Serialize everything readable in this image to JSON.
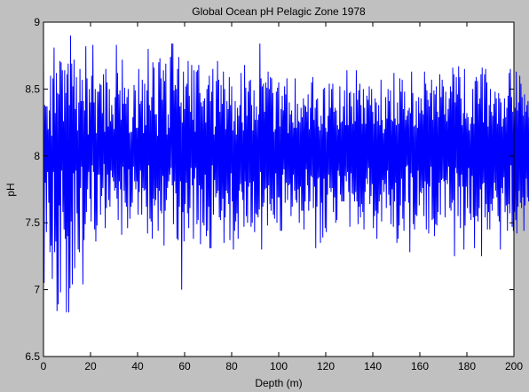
{
  "chart_data": {
    "type": "line",
    "title": "Global Ocean pH Pelagic Zone 1978",
    "xlabel": "Depth (m)",
    "ylabel": "pH",
    "xlim": [
      0,
      200
    ],
    "ylim": [
      6.5,
      9
    ],
    "xticks": [
      0,
      20,
      40,
      60,
      80,
      100,
      120,
      140,
      160,
      180,
      200
    ],
    "yticks": [
      6.5,
      7,
      7.5,
      8,
      8.5,
      9
    ],
    "xtick_labels": [
      "0",
      "20",
      "40",
      "60",
      "80",
      "100",
      "120",
      "140",
      "160",
      "180",
      "200"
    ],
    "ytick_labels": [
      "6.5",
      "7",
      "7.5",
      "8",
      "8.5",
      "9"
    ],
    "grid": false,
    "series": [
      {
        "color": "#0000ff",
        "x_start": 0,
        "x_step": 0.25,
        "y": [
          8.78,
          7.05,
          8.38,
          7.8,
          8.37,
          7.43,
          8.37,
          7.88,
          8.2,
          7.65,
          8.34,
          7.28,
          8.6,
          7.33,
          8.15,
          7.08,
          8.58,
          7.88,
          8.81,
          7.28,
          8.32,
          7.36,
          8.62,
          6.84,
          8.47,
          6.89,
          8.46,
          7.63,
          8.71,
          6.98,
          8.7,
          7.89,
          8.64,
          7.58,
          8.26,
          7.45,
          8.64,
          7.38,
          8.47,
          6.83,
          8.61,
          7.4,
          8.69,
          6.83,
          8.38,
          7.01,
          8.9,
          7.51,
          8.69,
          7.04,
          8.52,
          7.87,
          8.72,
          7.16,
          8.35,
          7.89,
          8.59,
          7.57,
          8.19,
          7.3,
          8.4,
          7.28,
          8.65,
          7.76,
          8.41,
          7.92,
          8.57,
          7.04,
          8.41,
          7.37,
          8.34,
          7.49,
          8.82,
          7.58,
          8.58,
          7.75,
          8.16,
          7.88,
          8.5,
          7.68,
          8.4,
          7.51,
          8.6,
          7.93,
          8.83,
          7.88,
          8.4,
          7.45,
          8.5,
          7.36,
          8.17,
          7.48,
          8.48,
          7.86,
          8.48,
          7.86,
          8.54,
          7.56,
          8.53,
          7.7,
          8.32,
          7.76,
          8.61,
          7.94,
          8.18,
          7.46,
          8.65,
          7.61,
          8.55,
          7.86,
          8.22,
          7.67,
          8.5,
          7.62,
          8.26,
          7.89,
          8.38,
          7.84,
          8.31,
          7.81,
          8.2,
          7.74,
          8.44,
          7.76,
          8.83,
          7.68,
          8.62,
          7.52,
          8.46,
          7.81,
          8.49,
          7.75,
          8.27,
          7.41,
          8.72,
          7.92,
          8.39,
          7.74,
          8.51,
          7.65,
          8.39,
          7.62,
          8.44,
          7.46,
          8.5,
          7.9,
          8.17,
          7.53,
          8.18,
          7.62,
          8.18,
          7.65,
          8.29,
          7.92,
          8.53,
          7.81,
          8.49,
          7.75,
          8.21,
          7.81,
          8.21,
          7.56,
          8.65,
          7.73,
          8.39,
          7.89,
          8.41,
          7.56,
          8.57,
          7.76,
          8.17,
          7.74,
          8.54,
          7.75,
          8.23,
          7.62,
          8.49,
          7.42,
          8.8,
          7.93,
          8.38,
          7.53,
          8.34,
          7.51,
          8.44,
          7.38,
          8.7,
          7.68,
          8.66,
          7.63,
          8.31,
          7.67,
          8.31,
          7.76,
          8.15,
          7.44,
          8.7,
          7.74,
          8.73,
          7.59,
          8.58,
          7.57,
          8.42,
          7.85,
          8.64,
          7.33,
          8.56,
          7.59,
          8.69,
          7.67,
          8.16,
          7.76,
          8.31,
          7.81,
          8.21,
          7.86,
          8.74,
          7.91,
          8.84,
          7.78,
          8.84,
          7.49,
          8.49,
          7.81,
          8.53,
          7.72,
          8.5,
          7.38,
          8.65,
          7.37,
          8.74,
          7.62,
          8.37,
          7.81,
          8.4,
          7.0,
          8.25,
          7.58,
          8.63,
          7.36,
          8.35,
          7.64,
          8.52,
          7.8,
          8.54,
          7.57,
          8.71,
          7.46,
          8.45,
          7.61,
          8.33,
          7.91,
          8.68,
          7.78,
          8.27,
          7.38,
          8.64,
          7.83,
          8.18,
          7.91,
          8.63,
          7.49,
          8.64,
          7.52,
          8.68,
          7.78,
          8.47,
          7.34,
          8.4,
          7.75,
          8.37,
          7.5,
          8.41,
          7.48,
          8.43,
          7.86,
          8.25,
          7.4,
          8.5,
          7.44,
          8.53,
          7.62,
          8.6,
          7.31,
          8.41,
          7.31,
          8.48,
          7.93,
          8.65,
          7.56,
          8.16,
          7.82,
          8.22,
          7.69,
          8.56,
          7.72,
          8.71,
          7.74,
          8.57,
          7.54,
          8.33,
          7.52,
          8.53,
          7.59,
          8.39,
          7.68,
          8.63,
          7.35,
          8.5,
          7.54,
          8.2,
          7.74,
          8.41,
          7.72,
          8.35,
          7.64,
          8.59,
          7.37,
          8.38,
          7.87,
          8.52,
          7.66,
          8.19,
          7.3,
          8.26,
          7.44,
          8.41,
          7.51,
          8.16,
          7.57,
          8.36,
          7.38,
          8.3,
          7.74,
          8.38,
          7.79,
          8.62,
          7.73,
          8.25,
          7.67,
          8.19,
          7.47,
          8.68,
          7.81,
          8.51,
          7.55,
          8.3,
          7.5,
          8.48,
          7.77,
          8.56,
          7.8,
          8.57,
          7.47,
          8.38,
          7.5,
          8.19,
          7.81,
          8.49,
          7.43,
          8.27,
          7.57,
          8.37,
          7.56,
          8.27,
          7.54,
          8.31,
          7.6,
          8.84,
          7.88,
          8.58,
          7.3,
          8.52,
          7.62,
          8.54,
          7.65,
          8.33,
          7.75,
          8.55,
          7.76,
          8.51,
          7.48,
          8.63,
          7.78,
          8.5,
          7.64,
          8.59,
          7.59,
          8.58,
          7.68,
          8.47,
          7.56,
          8.18,
          7.53,
          8.2,
          7.87,
          8.48,
          7.5,
          8.51,
          7.69,
          8.55,
          7.69,
          8.22,
          7.44,
          8.35,
          7.44,
          8.45,
          7.86,
          8.34,
          7.9,
          8.52,
          7.65,
          8.46,
          7.8,
          8.58,
          7.67,
          8.17,
          7.78,
          8.4,
          7.79,
          8.31,
          7.55,
          8.34,
          7.62,
          8.25,
          7.86,
          8.21,
          7.74,
          8.58,
          7.67,
          8.21,
          7.65,
          8.39,
          7.75,
          8.26,
          7.5,
          8.25,
          7.77,
          8.36,
          7.59,
          8.29,
          7.59,
          8.43,
          7.45,
          8.38,
          7.66,
          8.37,
          7.9,
          8.33,
          7.78,
          8.46,
          7.59,
          8.2,
          7.66,
          8.36,
          7.85,
          8.55,
          7.84,
          8.59,
          7.61,
          8.27,
          7.77,
          8.36,
          7.31,
          8.42,
          7.62,
          8.43,
          7.83,
          8.22,
          7.84,
          8.19,
          7.35,
          8.3,
          7.65,
          8.24,
          7.39,
          8.5,
          7.83,
          8.51,
          7.46,
          8.21,
          7.43,
          8.18,
          7.71,
          8.3,
          7.86,
          8.54,
          7.76,
          8.36,
          7.73,
          8.5,
          7.76,
          8.54,
          7.58,
          8.33,
          7.69,
          8.36,
          7.5,
          8.34,
          7.52,
          8.23,
          7.89,
          8.2,
          7.85,
          8.52,
          7.71,
          8.25,
          7.66,
          8.26,
          7.66,
          8.37,
          7.66,
          8.49,
          7.85,
          8.23,
          7.81,
          8.64,
          7.88,
          8.23,
          7.73,
          8.47,
          7.47,
          8.48,
          7.87,
          8.37,
          7.72,
          8.24,
          7.71,
          8.47,
          7.66,
          8.26,
          7.73,
          8.64,
          7.66,
          8.42,
          7.49,
          8.49,
          7.62,
          8.54,
          7.54,
          8.38,
          7.64,
          8.24,
          7.58,
          8.5,
          7.45,
          8.36,
          7.73,
          8.24,
          7.83,
          8.45,
          7.79,
          8.42,
          7.91,
          8.52,
          7.64,
          8.38,
          7.7,
          8.5,
          7.79,
          8.33,
          7.46,
          8.24,
          7.55,
          8.43,
          7.59,
          8.4,
          7.38,
          8.26,
          7.57,
          8.38,
          7.66,
          8.23,
          7.71,
          8.57,
          7.51,
          8.27,
          7.82,
          8.17,
          7.73,
          8.2,
          7.79,
          8.44,
          7.61,
          8.28,
          7.89,
          8.5,
          7.71,
          8.41,
          7.63,
          8.49,
          7.49,
          8.27,
          7.75,
          8.26,
          7.47,
          8.62,
          7.66,
          8.28,
          7.8,
          8.23,
          7.35,
          8.4,
          7.38,
          8.24,
          7.48,
          8.58,
          7.63,
          8.48,
          7.83,
          8.57,
          7.53,
          8.35,
          7.44,
          8.48,
          7.66,
          8.27,
          7.92,
          8.3,
          7.93,
          8.34,
          7.65,
          8.36,
          7.28,
          8.32,
          7.87,
          8.63,
          7.84,
          8.47,
          7.49,
          8.22,
          7.45,
          8.23,
          7.56,
          8.41,
          7.55,
          8.21,
          7.89,
          8.44,
          7.63,
          8.32,
          7.73,
          8.43,
          7.72,
          8.34,
          7.76,
          8.31,
          7.55,
          8.63,
          7.81,
          8.54,
          7.45,
          8.49,
          7.79,
          8.42,
          7.42,
          8.37,
          7.77,
          8.47,
          7.92,
          8.57,
          7.52,
          8.27,
          7.53,
          8.49,
          7.4,
          8.46,
          7.49,
          8.52,
          7.48,
          8.33,
          7.58,
          8.29,
          7.8,
          8.61,
          7.56,
          8.44,
          7.82,
          8.57,
          7.83,
          8.52,
          7.81,
          8.31,
          7.54,
          8.48,
          7.82,
          8.26,
          7.79,
          8.35,
          7.92,
          8.43,
          7.61,
          8.52,
          7.59,
          8.48,
          7.65,
          8.66,
          7.67,
          8.61,
          7.25,
          8.4,
          7.91,
          8.59,
          7.87,
          8.46,
          7.55,
          8.67,
          7.77,
          8.59,
          7.46,
          8.43,
          7.86,
          8.23,
          7.77,
          8.32,
          7.3,
          8.65,
          7.48,
          8.28,
          7.77,
          8.32,
          7.61,
          8.29,
          7.91,
          8.19,
          7.57,
          8.24,
          7.52,
          8.29,
          7.85,
          8.5,
          7.54,
          8.24,
          7.31,
          8.56,
          7.55,
          8.59,
          7.55,
          8.56,
          7.51,
          8.39,
          7.61,
          8.43,
          7.75,
          8.61,
          7.25,
          8.66,
          7.79,
          8.25,
          7.8,
          8.61,
          7.54,
          8.65,
          7.64,
          8.55,
          7.45,
          8.22,
          7.58,
          8.38,
          7.45,
          8.5,
          7.64,
          8.33,
          7.59,
          8.3,
          7.68,
          8.39,
          7.8,
          8.48,
          7.74,
          8.43,
          7.69,
          8.24,
          7.55,
          8.47,
          7.51,
          8.43,
          7.3,
          8.4,
          7.76,
          8.22,
          7.72,
          8.28,
          7.84,
          8.43,
          7.58,
          8.29,
          7.63,
          8.36,
          7.44,
          8.45,
          7.64,
          8.62,
          7.57,
          8.65,
          7.93,
          8.44,
          7.47,
          8.33,
          7.44,
          8.49,
          7.58,
          8.36,
          7.52,
          8.63,
          7.42,
          8.34,
          7.62,
          8.4,
          7.74,
          8.6,
          7.65,
          8.54,
          7.61,
          8.44,
          7.69,
          8.3,
          7.44,
          8.46,
          7.63,
          8.33,
          7.83,
          8.38,
          7.69,
          8.41,
          7.66,
          8.29,
          7.69,
          8.61,
          7.44,
          8.4,
          7.7,
          8.63,
          7.39,
          8.32,
          7.91,
          8.48,
          7.83,
          8.3,
          7.78,
          8.65,
          7.81,
          8.54,
          7.6,
          8.29,
          7.56,
          8.23,
          7.48,
          8.42,
          7.61,
          8.35,
          7.51,
          8.28,
          7.72,
          8.86,
          7.74,
          8.39,
          7.68,
          8.51,
          7.72,
          8.45,
          7.75,
          8.38,
          7.46,
          8.38,
          7.44,
          8.34,
          7.55,
          8.34,
          7.5,
          8.56,
          7.58,
          8.49,
          7.73,
          8.64,
          7.36,
          8.26,
          7.71,
          8.5,
          7.56,
          8.19,
          7.64,
          8.56,
          7.28,
          8.45,
          7.82,
          8.37,
          7.46,
          8.32,
          7.35,
          8.43,
          7.49,
          8.6,
          7.59,
          8.29,
          7.9,
          8.4,
          7.65,
          8.22,
          7.53,
          8.41,
          7.41,
          8.22,
          7.85,
          8.36,
          7.84,
          8.27,
          7.51,
          8.61,
          7.78,
          8.35,
          7.43,
          8.43,
          7.39,
          8.36,
          7.34,
          8.68,
          7.36,
          8.33,
          7.82,
          8.58,
          7.49,
          8.2,
          7.82,
          8.2,
          7.64,
          8.62,
          7.69,
          8.3,
          7.64,
          8.49,
          7.47,
          8.63,
          7.7,
          8.48,
          7.31,
          8.52,
          7.84,
          8.45,
          7.09,
          8.53,
          7.66,
          8.3,
          7.66,
          8.54,
          7.67,
          8.46,
          7.6,
          8.33,
          7.47,
          8.46,
          7.7,
          8.31,
          7.57,
          8.41,
          7.4,
          8.5,
          7.42,
          8.6,
          7.91,
          8.48,
          7.34,
          8.55,
          7.52,
          8.62,
          7.46,
          8.51,
          7.58,
          8.52,
          7.92,
          8.39,
          7.92,
          8.49,
          7.58,
          8.33,
          7.56,
          8.37,
          7.58,
          8.29,
          7.43,
          8.26,
          7.56,
          8.54,
          7.35,
          8.37,
          7.73,
          8.46,
          7.64,
          8.23,
          7.49,
          8.38,
          7.71,
          8.42,
          7.27,
          8.3,
          7.84,
          8.58,
          7.4,
          8.39,
          7.58,
          8.56,
          7.44,
          8.24,
          7.54,
          8.45,
          7.19,
          8.53,
          7.71,
          8.3,
          7.22,
          8.89,
          7.41,
          8.59,
          7.81
        ]
      }
    ]
  }
}
